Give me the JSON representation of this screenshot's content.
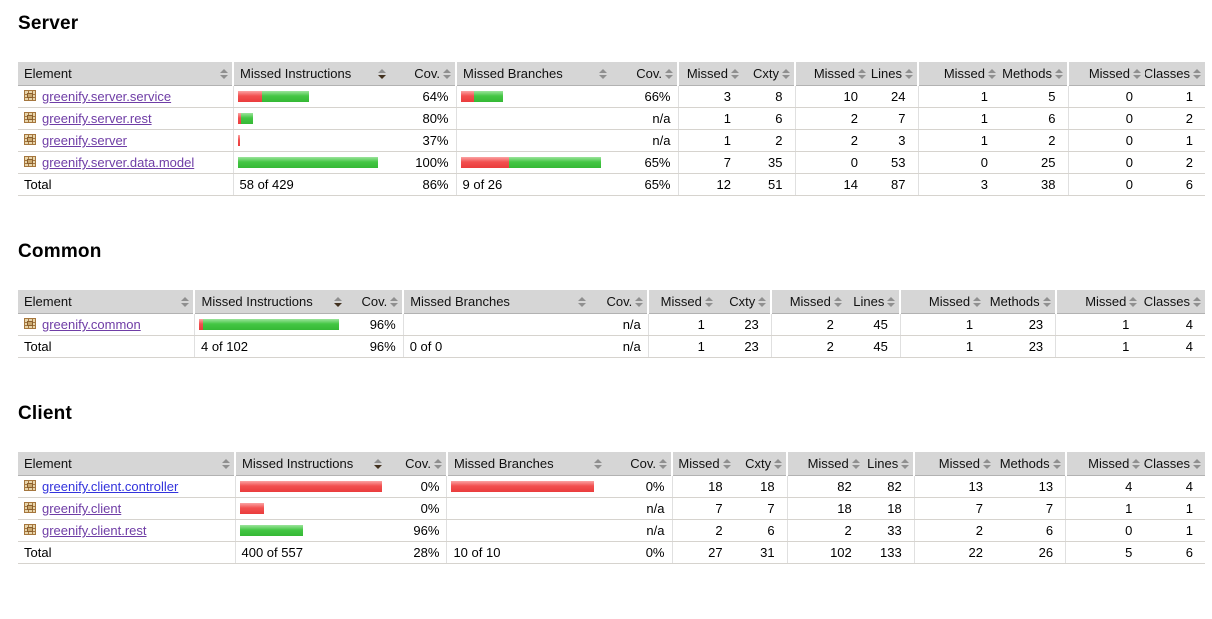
{
  "report": {
    "colors": {
      "bar_red": "#f25050",
      "bar_green": "#44c644",
      "header_bg": "#d6d6d6",
      "row_border": "#d6d3ce",
      "link": "#3333dd",
      "link_visited": "#6f3da6"
    },
    "columns": [
      {
        "label": "Element",
        "kind": "element",
        "sorted": false
      },
      {
        "label": "Missed Instructions",
        "kind": "bar",
        "sorted": true
      },
      {
        "label": "Cov.",
        "kind": "pct",
        "sorted": false
      },
      {
        "label": "Missed Branches",
        "kind": "bar",
        "sorted": false
      },
      {
        "label": "Cov.",
        "kind": "pct",
        "sorted": false
      },
      {
        "label": "Missed",
        "kind": "num",
        "sorted": false
      },
      {
        "label": "Cxty",
        "kind": "num",
        "sorted": false
      },
      {
        "label": "Missed",
        "kind": "num",
        "sorted": false
      },
      {
        "label": "Lines",
        "kind": "num",
        "sorted": false
      },
      {
        "label": "Missed",
        "kind": "num",
        "sorted": false
      },
      {
        "label": "Methods",
        "kind": "num",
        "sorted": false
      },
      {
        "label": "Missed",
        "kind": "num",
        "sorted": false
      },
      {
        "label": "Classes",
        "kind": "num",
        "sorted": false
      }
    ],
    "sections": [
      {
        "id": "server",
        "title": "Server",
        "rows": [
          {
            "name": "greenify.server.service",
            "visited": true,
            "instr_bar": {
              "red": 24,
              "green": 47
            },
            "instr_cov": "64%",
            "branch_bar": {
              "red": 13,
              "green": 29
            },
            "branch_cov": "66%",
            "vals": [
              "3",
              "8",
              "10",
              "24",
              "1",
              "5",
              "0",
              "1"
            ]
          },
          {
            "name": "greenify.server.rest",
            "visited": true,
            "instr_bar": {
              "red": 3,
              "green": 12
            },
            "instr_cov": "80%",
            "branch_bar": null,
            "branch_cov": "n/a",
            "vals": [
              "1",
              "6",
              "2",
              "7",
              "1",
              "6",
              "0",
              "2"
            ]
          },
          {
            "name": "greenify.server",
            "visited": true,
            "instr_bar": {
              "red": 2,
              "green": 0
            },
            "instr_cov": "37%",
            "branch_bar": null,
            "branch_cov": "n/a",
            "vals": [
              "1",
              "2",
              "2",
              "3",
              "1",
              "2",
              "0",
              "1"
            ]
          },
          {
            "name": "greenify.server.data.model",
            "visited": true,
            "instr_bar": {
              "red": 0,
              "green": 140
            },
            "instr_cov": "100%",
            "branch_bar": {
              "red": 48,
              "green": 92
            },
            "branch_cov": "65%",
            "vals": [
              "7",
              "35",
              "0",
              "53",
              "0",
              "25",
              "0",
              "2"
            ]
          }
        ],
        "total": {
          "label": "Total",
          "instr_text": "58 of 429",
          "instr_cov": "86%",
          "branch_text": "9 of 26",
          "branch_cov": "65%",
          "vals": [
            "12",
            "51",
            "14",
            "87",
            "3",
            "38",
            "0",
            "6"
          ]
        }
      },
      {
        "id": "common",
        "title": "Common",
        "rows": [
          {
            "name": "greenify.common",
            "visited": true,
            "instr_bar": {
              "red": 4,
              "green": 136
            },
            "instr_cov": "96%",
            "branch_bar": null,
            "branch_cov": "n/a",
            "vals": [
              "1",
              "23",
              "2",
              "45",
              "1",
              "23",
              "1",
              "4"
            ]
          }
        ],
        "total": {
          "label": "Total",
          "instr_text": "4 of 102",
          "instr_cov": "96%",
          "branch_text": "0 of 0",
          "branch_cov": "n/a",
          "vals": [
            "1",
            "23",
            "2",
            "45",
            "1",
            "23",
            "1",
            "4"
          ]
        }
      },
      {
        "id": "client",
        "title": "Client",
        "rows": [
          {
            "name": "greenify.client.controller",
            "visited": false,
            "instr_bar": {
              "red": 143,
              "green": 0
            },
            "instr_cov": "0%",
            "branch_bar": {
              "red": 143,
              "green": 0
            },
            "branch_cov": "0%",
            "vals": [
              "18",
              "18",
              "82",
              "82",
              "13",
              "13",
              "4",
              "4"
            ]
          },
          {
            "name": "greenify.client",
            "visited": true,
            "instr_bar": {
              "red": 24,
              "green": 0
            },
            "instr_cov": "0%",
            "branch_bar": null,
            "branch_cov": "n/a",
            "vals": [
              "7",
              "7",
              "18",
              "18",
              "7",
              "7",
              "1",
              "1"
            ]
          },
          {
            "name": "greenify.client.rest",
            "visited": true,
            "instr_bar": {
              "red": 0,
              "green": 63
            },
            "instr_cov": "96%",
            "branch_bar": null,
            "branch_cov": "n/a",
            "vals": [
              "2",
              "6",
              "2",
              "33",
              "2",
              "6",
              "0",
              "1"
            ]
          }
        ],
        "total": {
          "label": "Total",
          "instr_text": "400 of 557",
          "instr_cov": "28%",
          "branch_text": "10 of 10",
          "branch_cov": "0%",
          "vals": [
            "27",
            "31",
            "102",
            "133",
            "22",
            "26",
            "5",
            "6"
          ]
        }
      }
    ]
  }
}
